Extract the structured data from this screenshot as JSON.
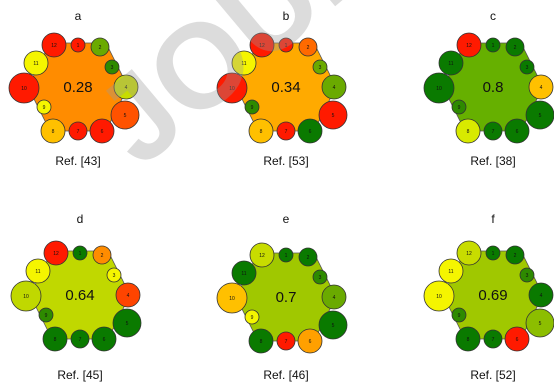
{
  "panels": [
    {
      "letter": "a",
      "score": "0.28",
      "ref": "Ref. [43]",
      "hex_color": "#ff8c00",
      "circles": [
        {
          "n": "1",
          "color": "#ff1a00"
        },
        {
          "n": "2",
          "color": "#6aaa00"
        },
        {
          "n": "3",
          "color": "#2e8a00"
        },
        {
          "n": "4",
          "color": "#c8dc00"
        },
        {
          "n": "5",
          "color": "#ff5200"
        },
        {
          "n": "6",
          "color": "#ff1a00"
        },
        {
          "n": "7",
          "color": "#ff1a00"
        },
        {
          "n": "8",
          "color": "#ffc000"
        },
        {
          "n": "9",
          "color": "#f5f500"
        },
        {
          "n": "10",
          "color": "#ff1a00"
        },
        {
          "n": "11",
          "color": "#f5f500"
        },
        {
          "n": "12",
          "color": "#ff1a00"
        }
      ]
    },
    {
      "letter": "b",
      "score": "0.34",
      "ref": "Ref. [53]",
      "hex_color": "#ffaa00",
      "circles": [
        {
          "n": "1",
          "color": "#ff1a00"
        },
        {
          "n": "2",
          "color": "#ff6a00"
        },
        {
          "n": "3",
          "color": "#6aaa00"
        },
        {
          "n": "4",
          "color": "#6aaa00"
        },
        {
          "n": "5",
          "color": "#ff1a00"
        },
        {
          "n": "6",
          "color": "#0a7a00"
        },
        {
          "n": "7",
          "color": "#ff1a00"
        },
        {
          "n": "8",
          "color": "#ffc000"
        },
        {
          "n": "9",
          "color": "#2e8a00"
        },
        {
          "n": "10",
          "color": "#ff1a00"
        },
        {
          "n": "11",
          "color": "#f5f500"
        },
        {
          "n": "12",
          "color": "#ff1a00"
        }
      ]
    },
    {
      "letter": "c",
      "score": "0.8",
      "ref": "Ref. [38]",
      "hex_color": "#66b000",
      "circles": [
        {
          "n": "1",
          "color": "#0a7a00"
        },
        {
          "n": "2",
          "color": "#0a7a00"
        },
        {
          "n": "3",
          "color": "#0a7a00"
        },
        {
          "n": "4",
          "color": "#ffc000"
        },
        {
          "n": "5",
          "color": "#0a7a00"
        },
        {
          "n": "6",
          "color": "#0a7a00"
        },
        {
          "n": "7",
          "color": "#0a7a00"
        },
        {
          "n": "8",
          "color": "#d8ea00"
        },
        {
          "n": "9",
          "color": "#2e8a00"
        },
        {
          "n": "10",
          "color": "#0a7a00"
        },
        {
          "n": "11",
          "color": "#0a7a00"
        },
        {
          "n": "12",
          "color": "#ff1a00"
        }
      ]
    },
    {
      "letter": "d",
      "score": "0.64",
      "ref": "Ref. [45]",
      "hex_color": "#c0d800",
      "circles": [
        {
          "n": "1",
          "color": "#0a7a00"
        },
        {
          "n": "2",
          "color": "#ff8c00"
        },
        {
          "n": "3",
          "color": "#f5f500"
        },
        {
          "n": "4",
          "color": "#ff4400"
        },
        {
          "n": "5",
          "color": "#0a7a00"
        },
        {
          "n": "6",
          "color": "#0a7a00"
        },
        {
          "n": "7",
          "color": "#0a7a00"
        },
        {
          "n": "8",
          "color": "#0a7a00"
        },
        {
          "n": "9",
          "color": "#2e8a00"
        },
        {
          "n": "10",
          "color": "#c0d800"
        },
        {
          "n": "11",
          "color": "#f5f500"
        },
        {
          "n": "12",
          "color": "#ff1a00"
        }
      ]
    },
    {
      "letter": "e",
      "score": "0.7",
      "ref": "Ref. [46]",
      "hex_color": "#a0c800",
      "circles": [
        {
          "n": "1",
          "color": "#0a7a00"
        },
        {
          "n": "2",
          "color": "#0a7a00"
        },
        {
          "n": "3",
          "color": "#2e8a00"
        },
        {
          "n": "4",
          "color": "#6aaa00"
        },
        {
          "n": "5",
          "color": "#0a7a00"
        },
        {
          "n": "6",
          "color": "#ffa000"
        },
        {
          "n": "7",
          "color": "#ff1a00"
        },
        {
          "n": "8",
          "color": "#0a7a00"
        },
        {
          "n": "9",
          "color": "#f5f500"
        },
        {
          "n": "10",
          "color": "#ffc000"
        },
        {
          "n": "11",
          "color": "#0a7a00"
        },
        {
          "n": "12",
          "color": "#c8dc00"
        }
      ]
    },
    {
      "letter": "f",
      "score": "0.69",
      "ref": "Ref. [52]",
      "hex_color": "#a0c800",
      "circles": [
        {
          "n": "1",
          "color": "#0a7a00"
        },
        {
          "n": "2",
          "color": "#0a7a00"
        },
        {
          "n": "3",
          "color": "#2e8a00"
        },
        {
          "n": "4",
          "color": "#0a7a00"
        },
        {
          "n": "5",
          "color": "#8cbe00"
        },
        {
          "n": "6",
          "color": "#ff1a00"
        },
        {
          "n": "7",
          "color": "#0a7a00"
        },
        {
          "n": "8",
          "color": "#0a7a00"
        },
        {
          "n": "9",
          "color": "#2e8a00"
        },
        {
          "n": "10",
          "color": "#f5f500"
        },
        {
          "n": "11",
          "color": "#f5f500"
        },
        {
          "n": "12",
          "color": "#c8dc00"
        }
      ]
    }
  ],
  "watermark_text": "JOURNAL"
}
